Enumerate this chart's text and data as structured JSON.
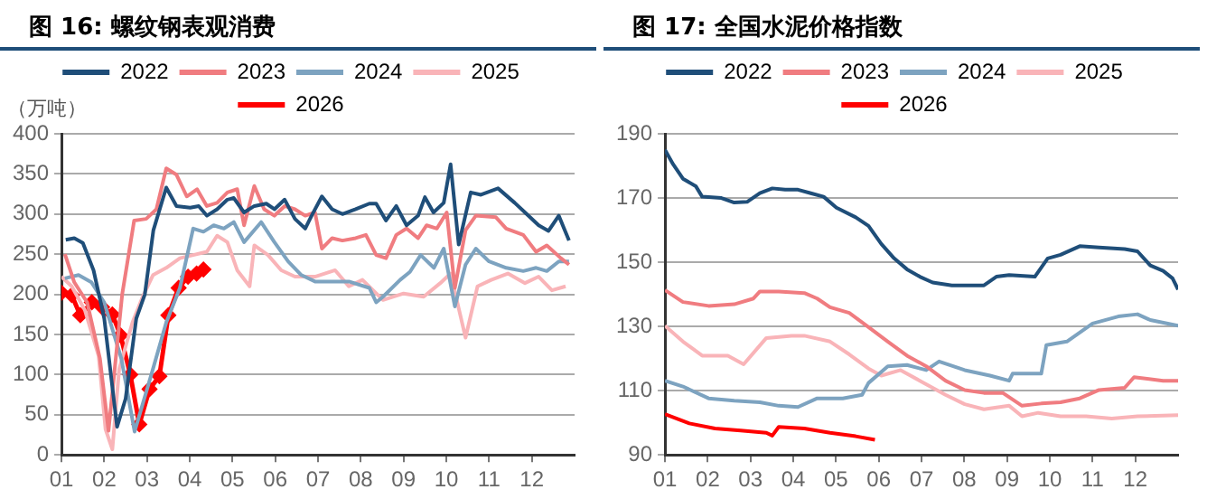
{
  "chart_data": [
    {
      "type": "line",
      "title": "图 16: 螺纹钢表观消费",
      "ylabel": "（万吨）",
      "legend": "top",
      "grid": "y",
      "marker": "none",
      "line_style": "solid",
      "xlim": [
        1,
        13
      ],
      "xticks": [
        {
          "value": 1,
          "label": "01"
        },
        {
          "value": 2,
          "label": "02"
        },
        {
          "value": 3,
          "label": "03"
        },
        {
          "value": 4,
          "label": "04"
        },
        {
          "value": 5,
          "label": "05"
        },
        {
          "value": 6,
          "label": "06"
        },
        {
          "value": 7,
          "label": "07"
        },
        {
          "value": 8,
          "label": "08"
        },
        {
          "value": 9,
          "label": "09"
        },
        {
          "value": 10,
          "label": "10"
        },
        {
          "value": 11,
          "label": "11"
        },
        {
          "value": 12,
          "label": "12"
        }
      ],
      "ylim": [
        0,
        400
      ],
      "yticks": [
        0,
        50,
        100,
        150,
        200,
        250,
        300,
        350,
        400
      ],
      "series": [
        {
          "name": "2022",
          "color": "#1f4e79",
          "x": [
            1.1,
            1.3,
            1.5,
            1.75,
            2.0,
            2.3,
            2.5,
            2.75,
            2.95,
            3.15,
            3.45,
            3.69,
            4.01,
            4.21,
            4.4,
            4.64,
            4.88,
            5.03,
            5.27,
            5.51,
            5.79,
            5.98,
            6.22,
            6.46,
            6.7,
            6.85,
            7.09,
            7.33,
            7.57,
            7.88,
            8.2,
            8.36,
            8.59,
            8.83,
            9.07,
            9.34,
            9.5,
            9.7,
            9.94,
            10.1,
            10.29,
            10.57,
            10.81,
            11.21,
            11.6,
            11.84,
            12.16,
            12.39,
            12.63,
            12.87
          ],
          "values": [
            268,
            270,
            264,
            230,
            170,
            35,
            70,
            170,
            200,
            280,
            333,
            310,
            308,
            310,
            298,
            306,
            318,
            320,
            302,
            310,
            313,
            306,
            318,
            294,
            282,
            298,
            322,
            306,
            300,
            306,
            313,
            313,
            292,
            310,
            286,
            298,
            321,
            302,
            314,
            362,
            262,
            327,
            324,
            332,
            314,
            302,
            286,
            279,
            298,
            267
          ]
        },
        {
          "name": "2023",
          "color": "#f07c80",
          "x": [
            1.08,
            1.3,
            1.6,
            1.9,
            2.1,
            2.42,
            2.7,
            2.98,
            3.22,
            3.45,
            3.69,
            3.93,
            4.17,
            4.4,
            4.64,
            4.88,
            5.11,
            5.27,
            5.51,
            5.74,
            5.98,
            6.22,
            6.46,
            6.7,
            6.93,
            7.09,
            7.33,
            7.57,
            7.88,
            8.12,
            8.36,
            8.59,
            8.83,
            9.07,
            9.34,
            9.54,
            9.78,
            10.01,
            10.2,
            10.45,
            10.69,
            11.16,
            11.4,
            11.8,
            12.1,
            12.35,
            12.68,
            12.87
          ],
          "values": [
            250,
            215,
            190,
            120,
            30,
            200,
            292,
            294,
            306,
            357,
            349,
            322,
            331,
            310,
            314,
            327,
            331,
            286,
            335,
            306,
            298,
            310,
            306,
            298,
            302,
            257,
            270,
            267,
            270,
            274,
            249,
            245,
            274,
            282,
            270,
            286,
            282,
            302,
            208,
            280,
            298,
            296,
            282,
            274,
            253,
            261,
            245,
            237
          ]
        },
        {
          "name": "2024",
          "color": "#7da3c0",
          "x": [
            1.08,
            1.4,
            1.7,
            2.0,
            2.4,
            2.71,
            3.14,
            3.45,
            3.77,
            4.08,
            4.32,
            4.56,
            4.8,
            5.03,
            5.27,
            5.67,
            5.98,
            6.3,
            6.61,
            6.93,
            7.25,
            7.72,
            8.2,
            8.36,
            8.52,
            8.92,
            9.15,
            9.4,
            9.71,
            9.94,
            10.2,
            10.45,
            10.69,
            11.0,
            11.4,
            11.8,
            12.1,
            12.35,
            12.63,
            12.87
          ],
          "values": [
            220,
            224,
            215,
            190,
            120,
            29,
            107,
            165,
            208,
            282,
            278,
            286,
            282,
            290,
            265,
            290,
            265,
            241,
            224,
            216,
            216,
            216,
            208,
            190,
            197,
            218,
            228,
            249,
            233,
            257,
            185,
            237,
            257,
            241,
            233,
            229,
            233,
            229,
            241,
            241
          ]
        },
        {
          "name": "2025",
          "color": "#f9b4b8",
          "x": [
            1.0,
            1.24,
            1.55,
            1.87,
            2.03,
            2.19,
            2.35,
            2.66,
            2.9,
            3.14,
            3.45,
            3.77,
            4.08,
            4.4,
            4.64,
            4.88,
            5.11,
            5.4,
            5.51,
            5.83,
            6.14,
            6.46,
            6.93,
            7.4,
            7.72,
            8.04,
            8.52,
            9.0,
            9.47,
            9.86,
            10.1,
            10.45,
            10.73,
            11.05,
            11.44,
            11.84,
            12.16,
            12.47,
            12.79
          ],
          "values": [
            222,
            210,
            180,
            123,
            32,
            7,
            107,
            165,
            197,
            224,
            233,
            245,
            249,
            253,
            273,
            265,
            230,
            210,
            261,
            249,
            230,
            222,
            222,
            230,
            210,
            218,
            193,
            201,
            197,
            214,
            226,
            146,
            210,
            218,
            226,
            214,
            222,
            205,
            210
          ]
        },
        {
          "name": "2026",
          "color": "#ff0000",
          "marker": "diamond",
          "x": [
            1.0,
            1.24,
            1.44,
            1.71,
            1.95,
            2.19,
            2.38,
            2.61,
            2.82,
            3.06,
            3.29,
            3.5,
            3.74,
            3.96,
            4.16,
            4.32
          ],
          "values": [
            202,
            199,
            174,
            190,
            184,
            175,
            149,
            100,
            38,
            82,
            98,
            174,
            208,
            222,
            226,
            231
          ]
        }
      ]
    },
    {
      "type": "line",
      "title": "图 17: 全国水泥价格指数",
      "legend": "top",
      "grid": "y",
      "marker": "none",
      "line_style": "solid",
      "xlim": [
        1,
        13
      ],
      "xticks": [
        {
          "value": 1,
          "label": "01"
        },
        {
          "value": 2,
          "label": "02"
        },
        {
          "value": 3,
          "label": "03"
        },
        {
          "value": 4,
          "label": "04"
        },
        {
          "value": 5,
          "label": "05"
        },
        {
          "value": 6,
          "label": "06"
        },
        {
          "value": 7,
          "label": "07"
        },
        {
          "value": 8,
          "label": "08"
        },
        {
          "value": 9,
          "label": "09"
        },
        {
          "value": 10,
          "label": "10"
        },
        {
          "value": 11,
          "label": "11"
        },
        {
          "value": 12,
          "label": "12"
        }
      ],
      "ylim": [
        90,
        190
      ],
      "yticks": [
        90,
        110,
        130,
        150,
        170,
        190
      ],
      "series": [
        {
          "name": "2022",
          "color": "#1f4e79",
          "x": [
            1,
            1.19,
            1.42,
            1.72,
            1.87,
            2.32,
            2.62,
            2.92,
            3.22,
            3.51,
            3.81,
            4.11,
            4.41,
            4.71,
            5.01,
            5.46,
            5.76,
            6.06,
            6.36,
            6.66,
            6.96,
            7.26,
            7.71,
            8.16,
            8.46,
            8.75,
            9.05,
            9.65,
            9.95,
            10.25,
            10.7,
            11.15,
            11.75,
            12.05,
            12.35,
            12.65,
            12.87,
            13
          ],
          "values": [
            185,
            180.5,
            176,
            173.7,
            170.4,
            170,
            168.6,
            168.8,
            171.5,
            173,
            172.6,
            172.6,
            171.5,
            170.4,
            167,
            164,
            161.3,
            155.7,
            151.2,
            147.8,
            145.5,
            143.7,
            142.8,
            142.8,
            142.8,
            145.5,
            146,
            145.5,
            151.2,
            152.3,
            155,
            154.6,
            154.1,
            153.4,
            149,
            147.3,
            145,
            141.5
          ]
        },
        {
          "name": "2023",
          "color": "#f07c80",
          "x": [
            1,
            1.42,
            2.02,
            2.62,
            3.07,
            3.22,
            3.66,
            4.26,
            4.56,
            4.86,
            5.31,
            5.76,
            6.21,
            6.66,
            7.11,
            7.56,
            8.01,
            8.46,
            8.9,
            9.35,
            9.8,
            10.25,
            10.7,
            11.15,
            11.75,
            11.97,
            12.65,
            13
          ],
          "values": [
            141.3,
            137.6,
            136.4,
            136.9,
            138.7,
            140.9,
            140.9,
            140.4,
            138.7,
            136,
            134.2,
            129.8,
            125.3,
            120.9,
            117.6,
            113.1,
            110.2,
            109.3,
            109.3,
            105.3,
            106,
            106.4,
            107.6,
            110.2,
            110.9,
            114.2,
            113.1,
            113.1
          ]
        },
        {
          "name": "2024",
          "color": "#7da3c0",
          "x": [
            1,
            1.42,
            2.02,
            2.62,
            3.22,
            3.66,
            4.11,
            4.56,
            5.16,
            5.61,
            5.76,
            6.21,
            6.66,
            7.11,
            7.41,
            8.01,
            8.6,
            9.05,
            9.13,
            9.8,
            9.92,
            10.4,
            11.0,
            11.6,
            12.05,
            12.35,
            13
          ],
          "values": [
            113.1,
            111.3,
            107.6,
            106.9,
            106.4,
            105.3,
            104.9,
            107.6,
            107.6,
            108.7,
            112.4,
            117.6,
            118,
            116.4,
            119.1,
            116.4,
            114.7,
            113.1,
            115.3,
            115.3,
            124.2,
            125.3,
            130.9,
            133.1,
            133.8,
            132,
            130.2
          ]
        },
        {
          "name": "2025",
          "color": "#f9b4b8",
          "x": [
            1,
            1.42,
            1.87,
            2.47,
            2.84,
            3.37,
            3.96,
            4.26,
            4.86,
            5.31,
            5.76,
            6.06,
            6.51,
            6.96,
            7.56,
            8.01,
            8.46,
            9.05,
            9.35,
            9.73,
            10.25,
            10.85,
            11.45,
            12.05,
            13
          ],
          "values": [
            130.2,
            125.3,
            120.9,
            120.9,
            118.2,
            126.4,
            127.1,
            127.1,
            125.3,
            121.3,
            116.9,
            114.7,
            116.4,
            113.1,
            108.7,
            105.8,
            104.2,
            105.3,
            102,
            103.1,
            102,
            102,
            101.3,
            102,
            102.4
          ]
        },
        {
          "name": "2026",
          "color": "#ff0000",
          "x": [
            1,
            1.57,
            2.17,
            2.77,
            3.37,
            3.51,
            3.66,
            4.26,
            4.86,
            5.46,
            5.91
          ],
          "values": [
            102.7,
            99.8,
            98.2,
            97.6,
            96.9,
            96,
            98.7,
            98.2,
            96.9,
            95.8,
            94.7
          ]
        }
      ]
    }
  ]
}
